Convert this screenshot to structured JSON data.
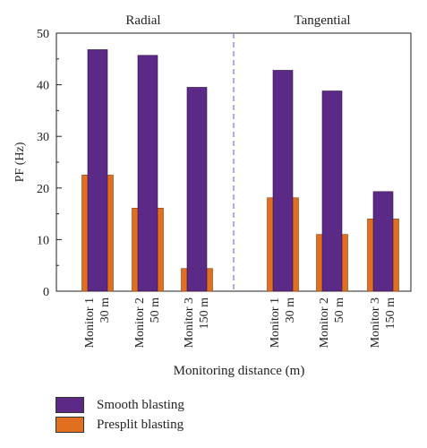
{
  "chart_data": {
    "type": "bar",
    "ylabel": "PF (Hz)",
    "xlabel": "Monitoring distance (m)",
    "ylim": [
      0,
      50
    ],
    "yticks": [
      0,
      10,
      20,
      30,
      40,
      50
    ],
    "panels": [
      {
        "title": "Radial",
        "categories": [
          {
            "line1": "Monitor 1",
            "line2": "30 m"
          },
          {
            "line1": "Monitor 2",
            "line2": "50 m"
          },
          {
            "line1": "Monitor 3",
            "line2": "150 m"
          }
        ],
        "series": [
          {
            "name": "Smooth blasting",
            "values": [
              46.8,
              45.7,
              39.5
            ]
          },
          {
            "name": "Presplit blasting",
            "values": [
              22.5,
              16.1,
              4.4
            ]
          }
        ]
      },
      {
        "title": "Tangential",
        "categories": [
          {
            "line1": "Monitor 1",
            "line2": "30 m"
          },
          {
            "line1": "Monitor 2",
            "line2": "50 m"
          },
          {
            "line1": "Monitor 3",
            "line2": "150 m"
          }
        ],
        "series": [
          {
            "name": "Smooth blasting",
            "values": [
              42.8,
              38.8,
              19.3
            ]
          },
          {
            "name": "Presplit blasting",
            "values": [
              18.1,
              11.0,
              14.0
            ]
          }
        ]
      }
    ],
    "colors": {
      "smooth": "#5b2a86",
      "presplit": "#e07020"
    },
    "divider_style": "dashed",
    "grid": false,
    "legend_position": "bottom-left"
  },
  "legend": [
    {
      "label": "Smooth blasting",
      "color": "#5b2a86"
    },
    {
      "label": "Presplit blasting",
      "color": "#e07020"
    }
  ]
}
